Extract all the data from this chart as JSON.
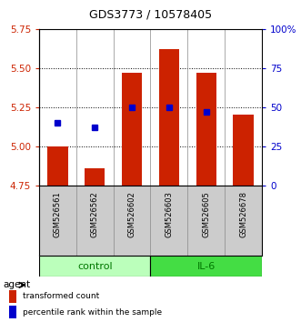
{
  "title": "GDS3773 / 10578405",
  "samples": [
    "GSM526561",
    "GSM526562",
    "GSM526602",
    "GSM526603",
    "GSM526605",
    "GSM526678"
  ],
  "groups": [
    "control",
    "control",
    "control",
    "IL-6",
    "IL-6",
    "IL-6"
  ],
  "bar_values": [
    5.0,
    4.86,
    5.47,
    5.62,
    5.47,
    5.2
  ],
  "percentile_values": [
    40,
    37,
    50,
    50,
    47
  ],
  "percentile_indices": [
    0,
    1,
    2,
    3,
    4
  ],
  "ylim_left": [
    4.75,
    5.75
  ],
  "ylim_right": [
    0,
    100
  ],
  "yticks_left": [
    4.75,
    5.0,
    5.25,
    5.5,
    5.75
  ],
  "yticks_right": [
    0,
    25,
    50,
    75,
    100
  ],
  "ytick_labels_right": [
    "0",
    "25",
    "50",
    "75",
    "100%"
  ],
  "bar_color": "#cc2200",
  "blue_color": "#0000cc",
  "bar_bottom": 4.75,
  "control_color": "#bbffbb",
  "il6_color": "#44dd44",
  "group_text_color": "#007700",
  "legend_bar_label": "transformed count",
  "legend_blue_label": "percentile rank within the sample",
  "sample_bg_color": "#cccccc",
  "bar_width": 0.55
}
